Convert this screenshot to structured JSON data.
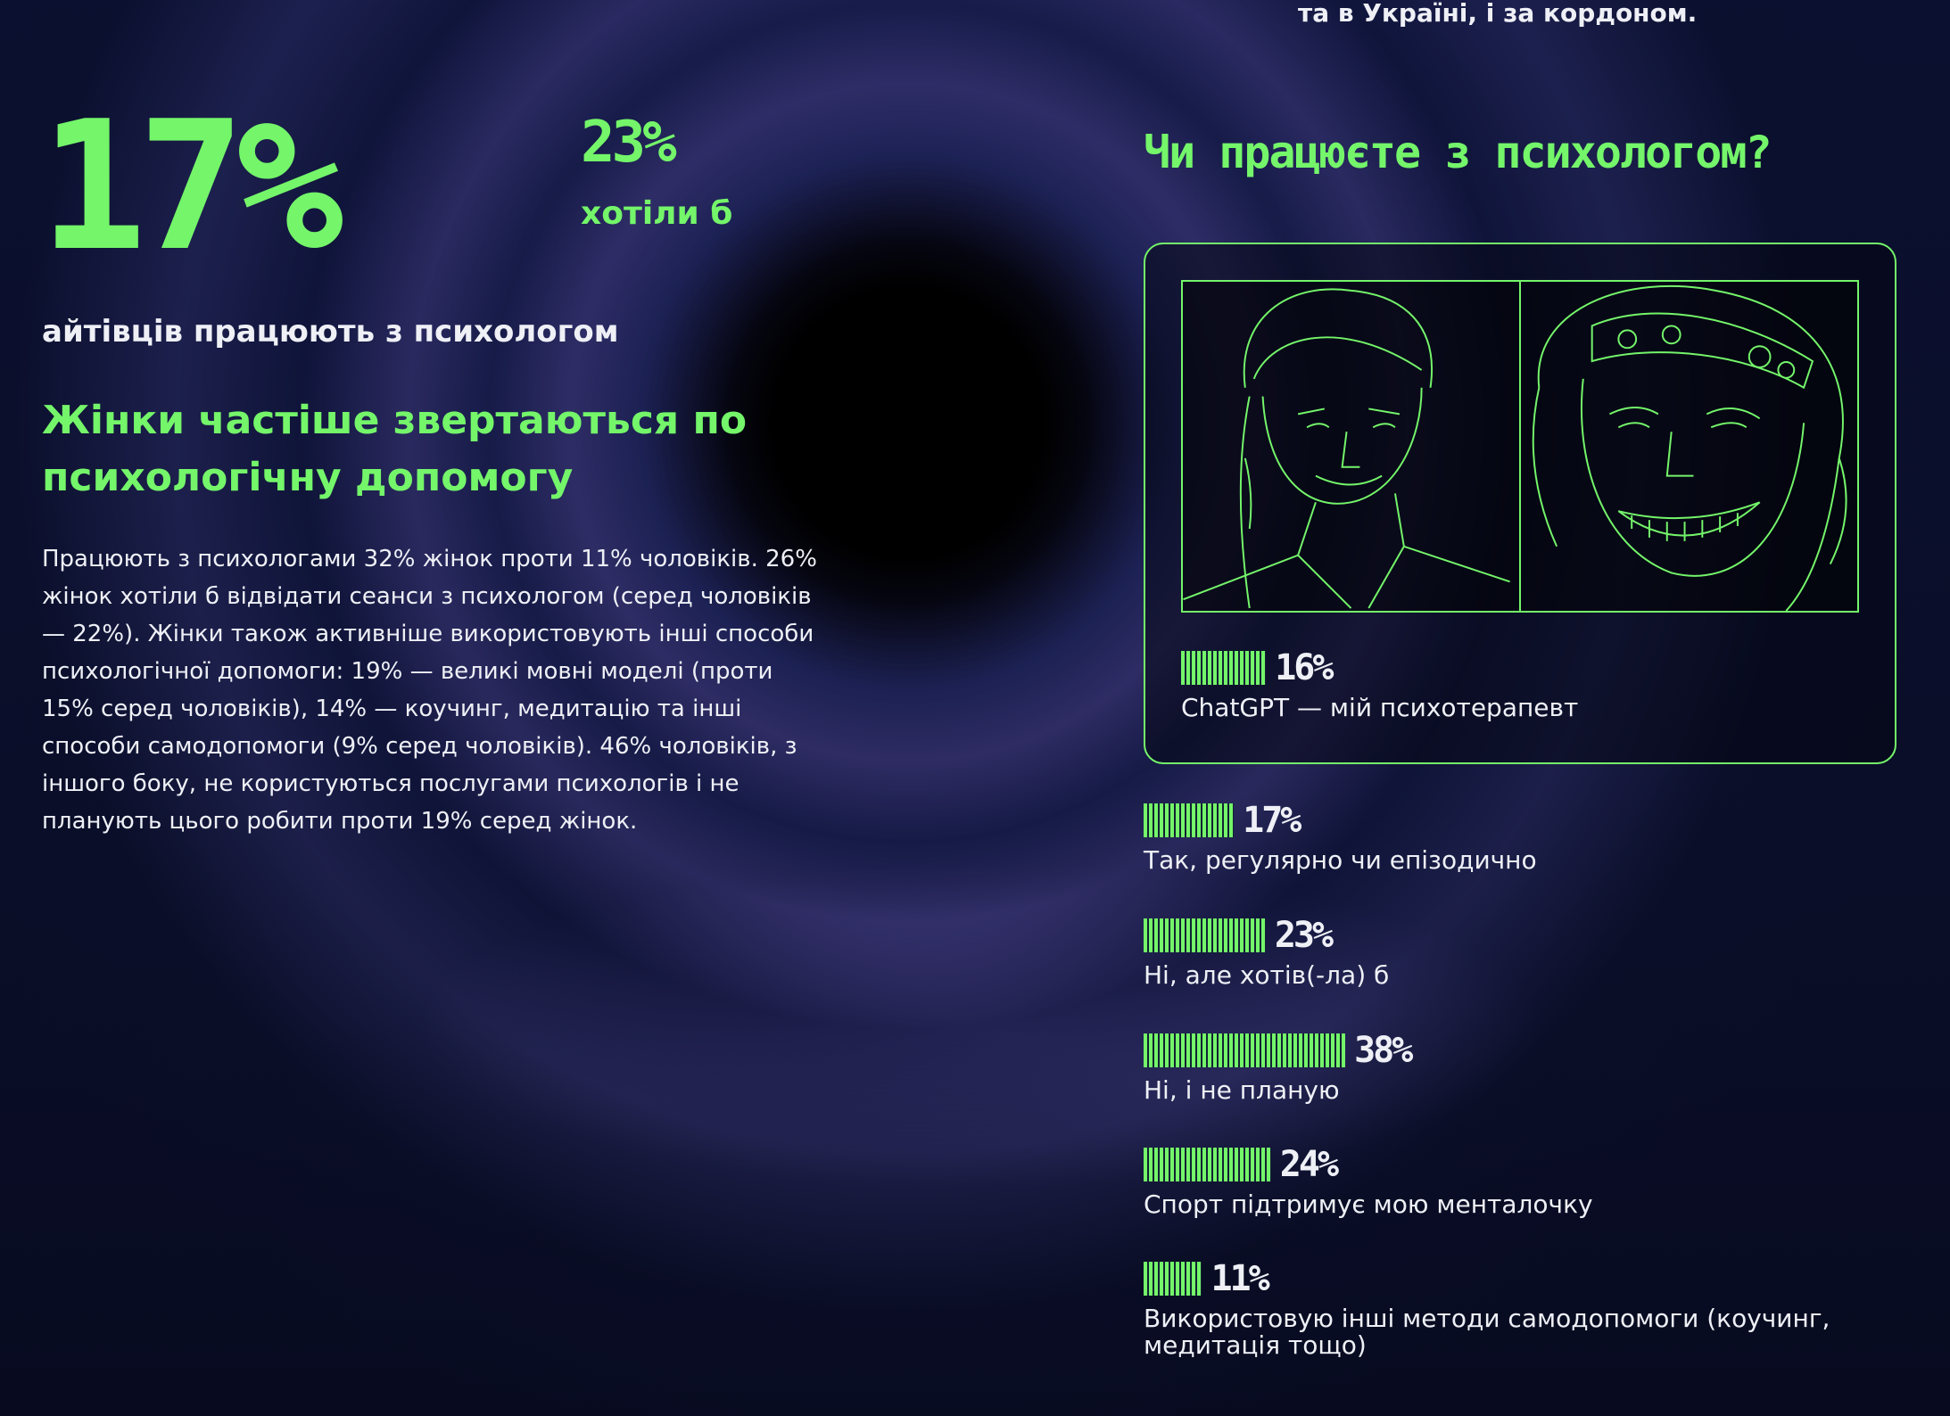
{
  "top_cut": "та в Україні, і за кордоном.",
  "left": {
    "big_pct": "17%",
    "big_label": "айтівців працюють з психологом",
    "small_pct": "23%",
    "small_label": "хотіли б",
    "heading": "Жінки частіше звертаються по психологічну допомогу",
    "paragraph": "Працюють з психологами 32% жінок проти 11% чоловіків. 26% жінок хотіли б відвідати сеанси з психологом (серед чоловіків — 22%). Жінки також активніше використовують інші способи психологічної допомоги: 19% — великі мовні моделі (проти 15% серед чоловіків), 14% — коучинг, медитацію та інші способи самодопомоги (9% серед чоловіків). 46% чоловіків, з іншого боку, не користуються послугами психологів і не планують цього робити проти 19% серед жінок."
  },
  "right": {
    "question": "Чи працюєте з психологом?",
    "accent": "#74f56a",
    "chart_data": {
      "type": "bar",
      "categories": [
        "ChatGPT — мій психотерапевт",
        "Так, регулярно чи епізодично",
        "Ні, але хотів(-ла) б",
        "Ні, і не планую",
        "Спорт підтримує мою менталочку",
        "Використовую інші методи самодопомоги (коучинг, медитація тощо)"
      ],
      "values": [
        16,
        17,
        23,
        38,
        24,
        11
      ],
      "labels": [
        "16%",
        "17%",
        "23%",
        "38%",
        "24%",
        "11%"
      ]
    }
  }
}
